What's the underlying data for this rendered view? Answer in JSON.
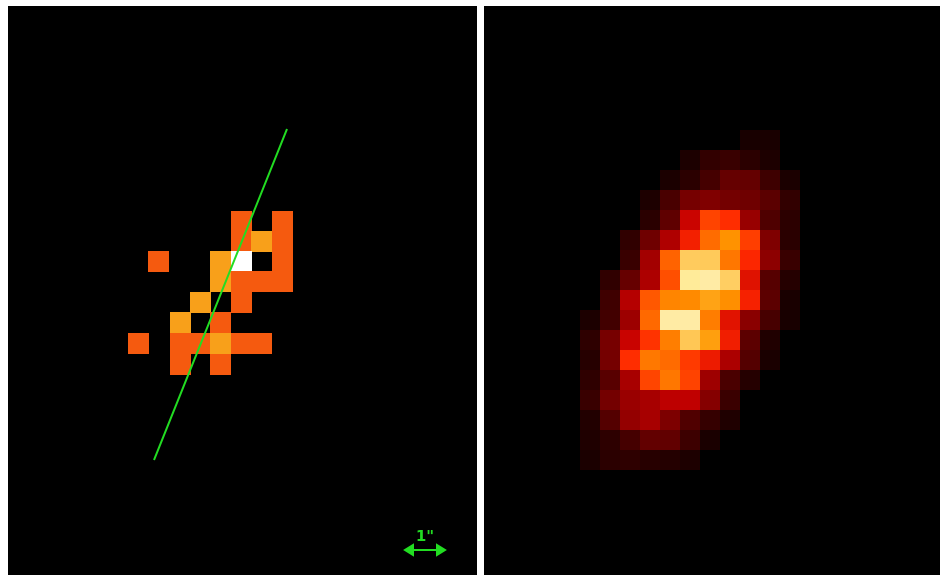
{
  "scale_bar": {
    "label": "1\""
  }
}
